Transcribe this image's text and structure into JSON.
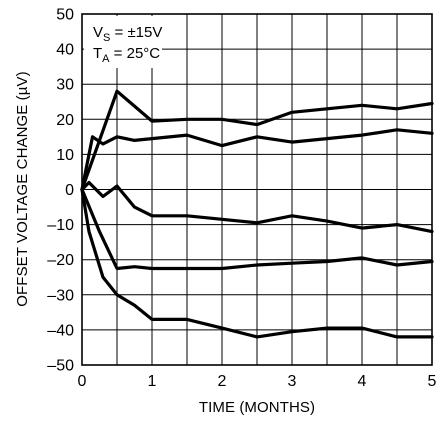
{
  "chart_data": {
    "type": "line",
    "title": "",
    "xlabel": "TIME (MONTHS)",
    "ylabel": "OFFSET VOLTAGE CHANGE (µV)",
    "xlim": [
      0,
      5
    ],
    "ylim": [
      -50,
      50
    ],
    "x_ticks": [
      0,
      1,
      2,
      3,
      4,
      5
    ],
    "y_ticks": [
      -50,
      -40,
      -30,
      -20,
      -10,
      0,
      10,
      20,
      30,
      40,
      50
    ],
    "x_tick_labels": [
      "0",
      "1",
      "2",
      "3",
      "4",
      "5"
    ],
    "y_tick_labels": [
      "–50",
      "–40",
      "–30",
      "–20",
      "–10",
      "0",
      "10",
      "20",
      "30",
      "40",
      "50"
    ],
    "x_grid_step": 0.5,
    "y_grid_step": 10,
    "grid": true,
    "annotations": {
      "vs_main": "V",
      "vs_sub": "S",
      "vs_rest": " = ±15V",
      "ta_main": "T",
      "ta_sub": "A",
      "ta_rest": " = 25°C"
    },
    "series": [
      {
        "x": [
          0,
          0.5,
          1,
          1.5,
          2,
          2.5,
          3,
          3.5,
          4,
          4.5,
          5
        ],
        "y": [
          0,
          28,
          19.5,
          20,
          20,
          18.5,
          22,
          23,
          24,
          23,
          24.5
        ]
      },
      {
        "x": [
          0,
          0.15,
          0.3,
          0.5,
          0.75,
          1,
          1.5,
          2,
          2.5,
          3,
          3.5,
          4,
          4.5,
          5
        ],
        "y": [
          0,
          15,
          13,
          15,
          14,
          14.5,
          15.5,
          12.5,
          15,
          13.5,
          14.5,
          15.5,
          17,
          16
        ]
      },
      {
        "x": [
          0,
          0.1,
          0.3,
          0.5,
          0.75,
          1,
          1.5,
          2,
          2.5,
          3,
          3.5,
          4,
          4.5,
          5
        ],
        "y": [
          0,
          2,
          -2,
          1,
          -5,
          -7.5,
          -7.5,
          -8.5,
          -9.5,
          -7.5,
          -9,
          -11,
          -10,
          -12
        ]
      },
      {
        "x": [
          0,
          0.25,
          0.5,
          0.75,
          1,
          1.5,
          2,
          2.5,
          3,
          3.5,
          4,
          4.5,
          5
        ],
        "y": [
          0,
          -12,
          -22.5,
          -22,
          -22.5,
          -22.5,
          -22.5,
          -21.5,
          -21,
          -20.5,
          -19.5,
          -21.5,
          -20.5
        ]
      },
      {
        "x": [
          0,
          0.1,
          0.3,
          0.5,
          0.75,
          1,
          1.5,
          2,
          2.5,
          3,
          3.5,
          4,
          4.5,
          5
        ],
        "y": [
          0,
          -12,
          -25,
          -30,
          -33,
          -37,
          -37,
          -39.5,
          -42,
          -40.5,
          -39.5,
          -39.5,
          -42,
          -42
        ]
      }
    ]
  }
}
